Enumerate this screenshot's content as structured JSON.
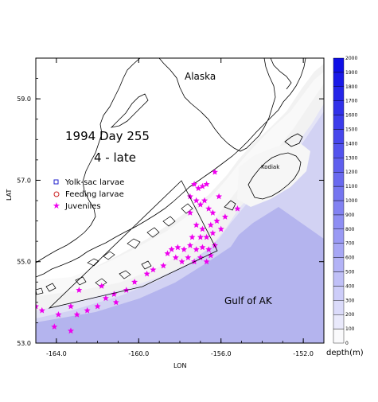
{
  "map": {
    "title_line1": "1994 Day 255",
    "title_line2": "4 - late",
    "region_label_north": "Alaska",
    "region_label_south": "Gulf of AK",
    "island_label": "Kodiak",
    "x_axis_label": "LON",
    "y_axis_label": "LAT",
    "lon_ticks": [
      "-164.0",
      "-160.0",
      "-156.0",
      "-152.0"
    ],
    "lon_values": [
      -164,
      -160,
      -156,
      -152
    ],
    "lat_ticks": [
      "59.0",
      "57.0",
      "55.0",
      "53.0"
    ],
    "lat_values": [
      59,
      57,
      55,
      53
    ],
    "lon_range": [
      -165,
      -151
    ],
    "lat_range": [
      53,
      60
    ]
  },
  "legend": {
    "items": [
      {
        "label": "Yolk-sac larvae",
        "symbol": "square",
        "color": "#2222cc"
      },
      {
        "label": "Feeding larvae",
        "symbol": "circle",
        "color": "#cc2222"
      },
      {
        "label": "Juveniles",
        "symbol": "star",
        "color": "#ee00ee"
      }
    ]
  },
  "colorbar": {
    "unit_label": "depth(m)",
    "levels": [
      "0",
      "100",
      "200",
      "300",
      "400",
      "500",
      "600",
      "700",
      "800",
      "900",
      "1000",
      "1100",
      "1200",
      "1300",
      "1400",
      "1500",
      "1600",
      "1700",
      "1800",
      "1900",
      "2000"
    ]
  },
  "juveniles": [
    [
      -157.3,
      56.9
    ],
    [
      -157.1,
      56.8
    ],
    [
      -156.9,
      56.85
    ],
    [
      -156.7,
      56.9
    ],
    [
      -157.5,
      56.6
    ],
    [
      -157.2,
      56.5
    ],
    [
      -157.0,
      56.4
    ],
    [
      -156.8,
      56.5
    ],
    [
      -156.6,
      56.3
    ],
    [
      -156.4,
      56.2
    ],
    [
      -156.2,
      56.0
    ],
    [
      -156.5,
      55.9
    ],
    [
      -156.9,
      55.8
    ],
    [
      -157.2,
      55.9
    ],
    [
      -157.4,
      55.6
    ],
    [
      -157.0,
      55.6
    ],
    [
      -156.7,
      55.6
    ],
    [
      -156.4,
      55.7
    ],
    [
      -156.3,
      55.4
    ],
    [
      -156.6,
      55.3
    ],
    [
      -156.9,
      55.35
    ],
    [
      -157.2,
      55.3
    ],
    [
      -157.5,
      55.4
    ],
    [
      -157.8,
      55.3
    ],
    [
      -158.1,
      55.35
    ],
    [
      -158.4,
      55.3
    ],
    [
      -158.6,
      55.2
    ],
    [
      -158.2,
      55.1
    ],
    [
      -157.9,
      55.0
    ],
    [
      -157.6,
      55.1
    ],
    [
      -157.3,
      55.0
    ],
    [
      -157.0,
      55.1
    ],
    [
      -156.7,
      55.0
    ],
    [
      -156.5,
      55.15
    ],
    [
      -157.5,
      56.2
    ],
    [
      -156.1,
      56.6
    ],
    [
      -156.3,
      57.2
    ],
    [
      -155.2,
      56.3
    ],
    [
      -155.8,
      56.1
    ],
    [
      -156.0,
      55.8
    ],
    [
      -158.8,
      54.9
    ],
    [
      -159.3,
      54.8
    ],
    [
      -159.6,
      54.7
    ],
    [
      -160.2,
      54.5
    ],
    [
      -160.6,
      54.3
    ],
    [
      -161.2,
      54.2
    ],
    [
      -161.6,
      54.1
    ],
    [
      -162.0,
      53.9
    ],
    [
      -162.5,
      53.8
    ],
    [
      -163.0,
      53.7
    ],
    [
      -163.3,
      53.9
    ],
    [
      -163.9,
      53.7
    ],
    [
      -164.7,
      53.8
    ],
    [
      -165.0,
      53.9
    ],
    [
      -164.1,
      53.4
    ],
    [
      -163.3,
      53.3
    ],
    [
      -162.9,
      54.3
    ],
    [
      -161.8,
      54.4
    ],
    [
      -161.1,
      54.0
    ]
  ]
}
